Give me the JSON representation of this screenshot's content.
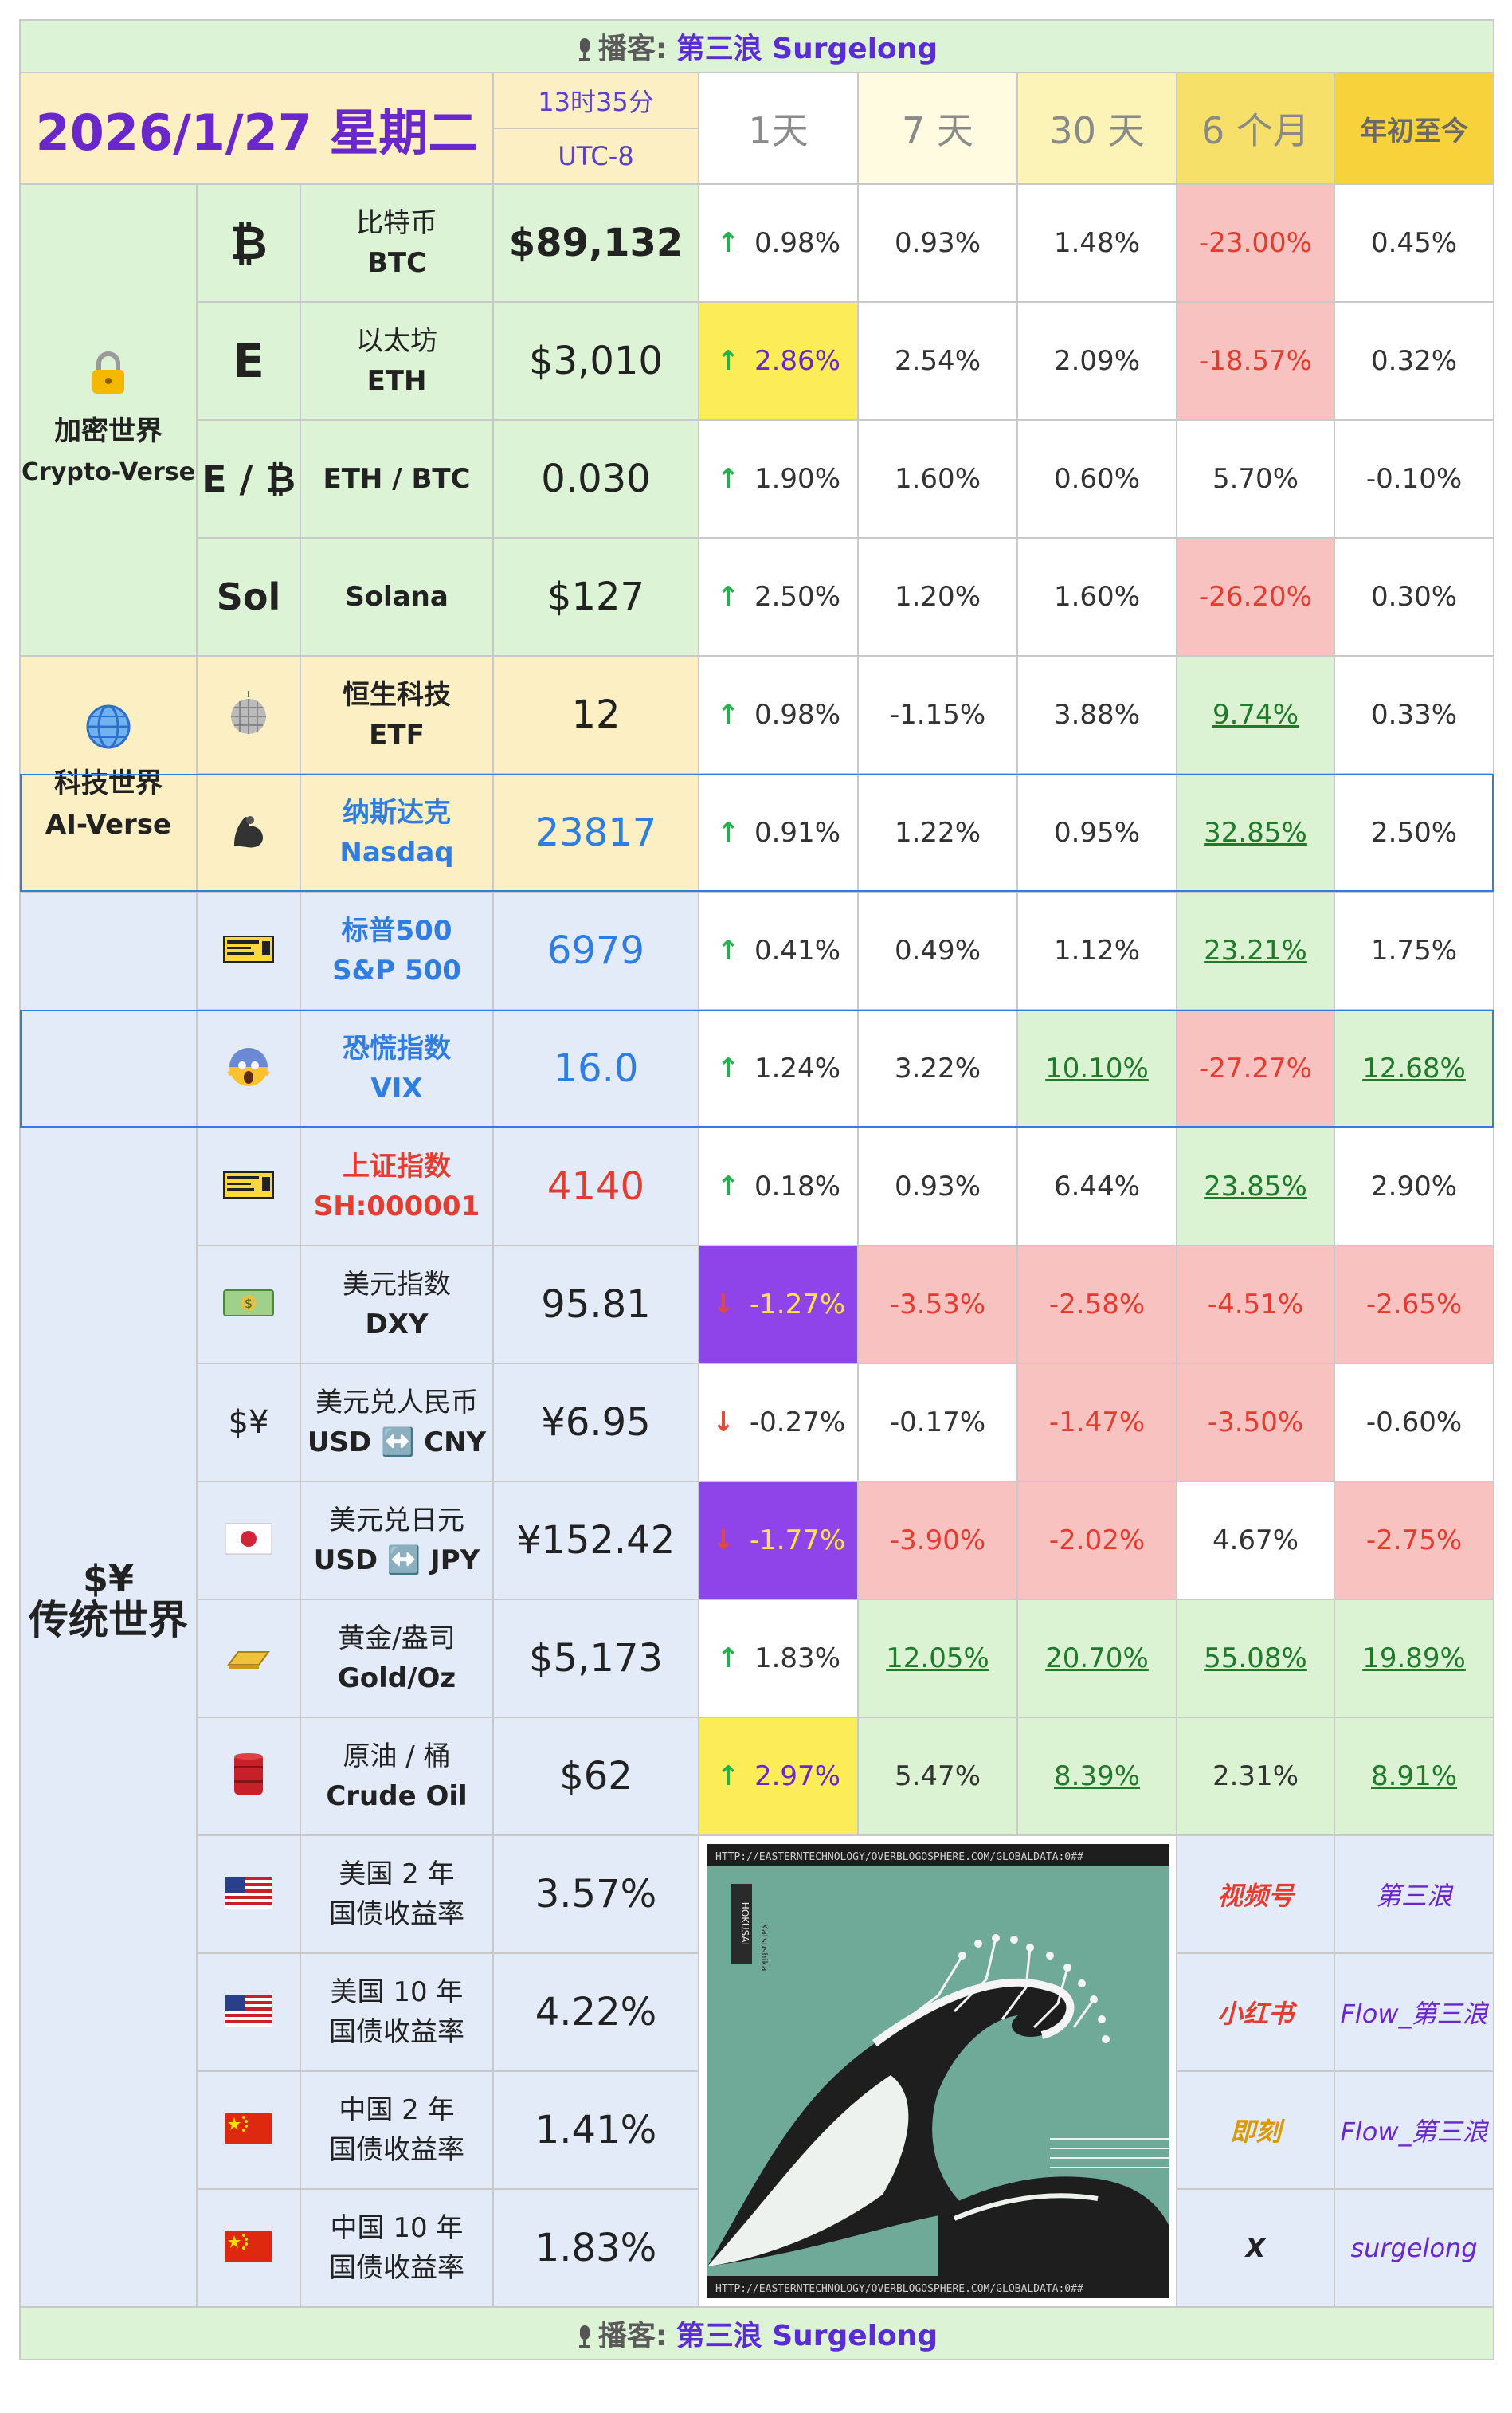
{
  "banner": {
    "label": "播客:",
    "host": "第三浪 Surgelong"
  },
  "header": {
    "date": "2026/1/27 星期二",
    "time": "13时35分",
    "tz": "UTC-8",
    "cols": [
      "1天",
      "7 天",
      "30 天",
      "6 个月",
      "年初至今"
    ]
  },
  "groups": {
    "crypto": {
      "zh": "加密世界",
      "en": "Crypto-Verse"
    },
    "tech": {
      "zh": "科技世界",
      "en": "AI-Verse"
    },
    "trad": {
      "zh": "传统世界"
    }
  },
  "rows": [
    {
      "sym": "₿",
      "zh": "比特币",
      "en": "BTC",
      "price": "$89,132",
      "dir": "up",
      "d1": "0.98%",
      "d7": "0.93%",
      "d30": "1.48%",
      "m6": "-23.00%",
      "ytd": "0.45%"
    },
    {
      "sym": "E",
      "zh": "以太坊",
      "en": "ETH",
      "price": "$3,010",
      "dir": "up",
      "d1": "2.86%",
      "d7": "2.54%",
      "d30": "2.09%",
      "m6": "-18.57%",
      "ytd": "0.32%"
    },
    {
      "sym": "E / ₿",
      "zh": "",
      "en": "ETH / BTC",
      "price": "0.030",
      "dir": "up",
      "d1": "1.90%",
      "d7": "1.60%",
      "d30": "0.60%",
      "m6": "5.70%",
      "ytd": "-0.10%"
    },
    {
      "sym": "Sol",
      "zh": "",
      "en": "Solana",
      "price": "$127",
      "dir": "up",
      "d1": "2.50%",
      "d7": "1.20%",
      "d30": "1.60%",
      "m6": "-26.20%",
      "ytd": "0.30%"
    },
    {
      "icon": "disco-ball-icon",
      "zh": "恒生科技",
      "en": "ETF",
      "price": "12",
      "dir": "up",
      "d1": "0.98%",
      "d7": "-1.15%",
      "d30": "3.88%",
      "m6": "9.74%",
      "ytd": "0.33%"
    },
    {
      "icon": "flexed-biceps-icon",
      "zh": "纳斯达克",
      "en": "Nasdaq",
      "price": "23817",
      "dir": "up",
      "d1": "0.91%",
      "d7": "1.22%",
      "d30": "0.95%",
      "m6": "32.85%",
      "ytd": "2.50%"
    },
    {
      "icon": "ticket-icon",
      "zh": "标普500",
      "en": "S&P 500",
      "price": "6979",
      "dir": "up",
      "d1": "0.41%",
      "d7": "0.49%",
      "d30": "1.12%",
      "m6": "23.21%",
      "ytd": "1.75%"
    },
    {
      "icon": "screaming-face-icon",
      "zh": "恐慌指数",
      "en": "VIX",
      "price": "16.0",
      "dir": "up",
      "d1": "1.24%",
      "d7": "3.22%",
      "d30": "10.10%",
      "m6": "-27.27%",
      "ytd": "12.68%"
    },
    {
      "icon": "ticket-icon",
      "zh": "上证指数",
      "en": "SH:000001",
      "price": "4140",
      "dir": "up",
      "d1": "0.18%",
      "d7": "0.93%",
      "d30": "6.44%",
      "m6": "23.85%",
      "ytd": "2.90%"
    },
    {
      "icon": "dollar-banknote-icon",
      "zh": "美元指数",
      "en": "DXY",
      "price": "95.81",
      "dir": "down",
      "d1": "-1.27%",
      "d7": "-3.53%",
      "d30": "-2.58%",
      "m6": "-4.51%",
      "ytd": "-2.65%"
    },
    {
      "icon": "currency-exchange-icon",
      "zh": "美元兑人民币",
      "en": "USD ↔️ CNY",
      "price": "¥6.95",
      "dir": "down",
      "d1": "-0.27%",
      "d7": "-0.17%",
      "d30": "-1.47%",
      "m6": "-3.50%",
      "ytd": "-0.60%"
    },
    {
      "icon": "japan-flag-icon",
      "zh": "美元兑日元",
      "en": "USD ↔️ JPY",
      "price": "¥152.42",
      "dir": "down",
      "d1": "-1.77%",
      "d7": "-3.90%",
      "d30": "-2.02%",
      "m6": "4.67%",
      "ytd": "-2.75%"
    },
    {
      "icon": "gold-bar-icon",
      "zh": "黄金/盎司",
      "en": "Gold/Oz",
      "price": "$5,173",
      "dir": "up",
      "d1": "1.83%",
      "d7": "12.05%",
      "d30": "20.70%",
      "m6": "55.08%",
      "ytd": "19.89%"
    },
    {
      "icon": "oil-drum-icon",
      "zh": "原油 / 桶",
      "en": "Crude Oil",
      "price": "$62",
      "dir": "up",
      "d1": "2.97%",
      "d7": "5.47%",
      "d30": "8.39%",
      "m6": "2.31%",
      "ytd": "8.91%"
    },
    {
      "icon": "us-flag-icon",
      "zh": "美国 2 年",
      "en": "国债收益率",
      "price": "3.57%"
    },
    {
      "icon": "us-flag-icon",
      "zh": "美国 10 年",
      "en": "国债收益率",
      "price": "4.22%"
    },
    {
      "icon": "china-flag-icon",
      "zh": "中国 2 年",
      "en": "国债收益率",
      "price": "1.41%"
    },
    {
      "icon": "china-flag-icon",
      "zh": "中国 10 年",
      "en": "国债收益率",
      "price": "1.83%"
    }
  ],
  "social": [
    {
      "platform": "视频号",
      "handle": "第三浪"
    },
    {
      "platform": "小红书",
      "handle": "Flow_第三浪"
    },
    {
      "platform": "即刻",
      "handle": "Flow_第三浪"
    },
    {
      "platform": "X",
      "handle": "surgelong"
    }
  ],
  "artwork": {
    "url_text": "HTTP://EASTERNTECHNOLOGY/OVERBLOGOSPHERE.COM/GLOBALDATA:0##",
    "seal": "HOKUSAI",
    "sub": "Katsushika"
  },
  "colors": {
    "green_bg": "#dcf3d6",
    "cream_bg": "#fbefc3",
    "blue_bg": "#e3eaf8",
    "purple": "#8e44e8",
    "red_cell": "#f8c2c0",
    "yellow_cell": "#fcec57"
  }
}
